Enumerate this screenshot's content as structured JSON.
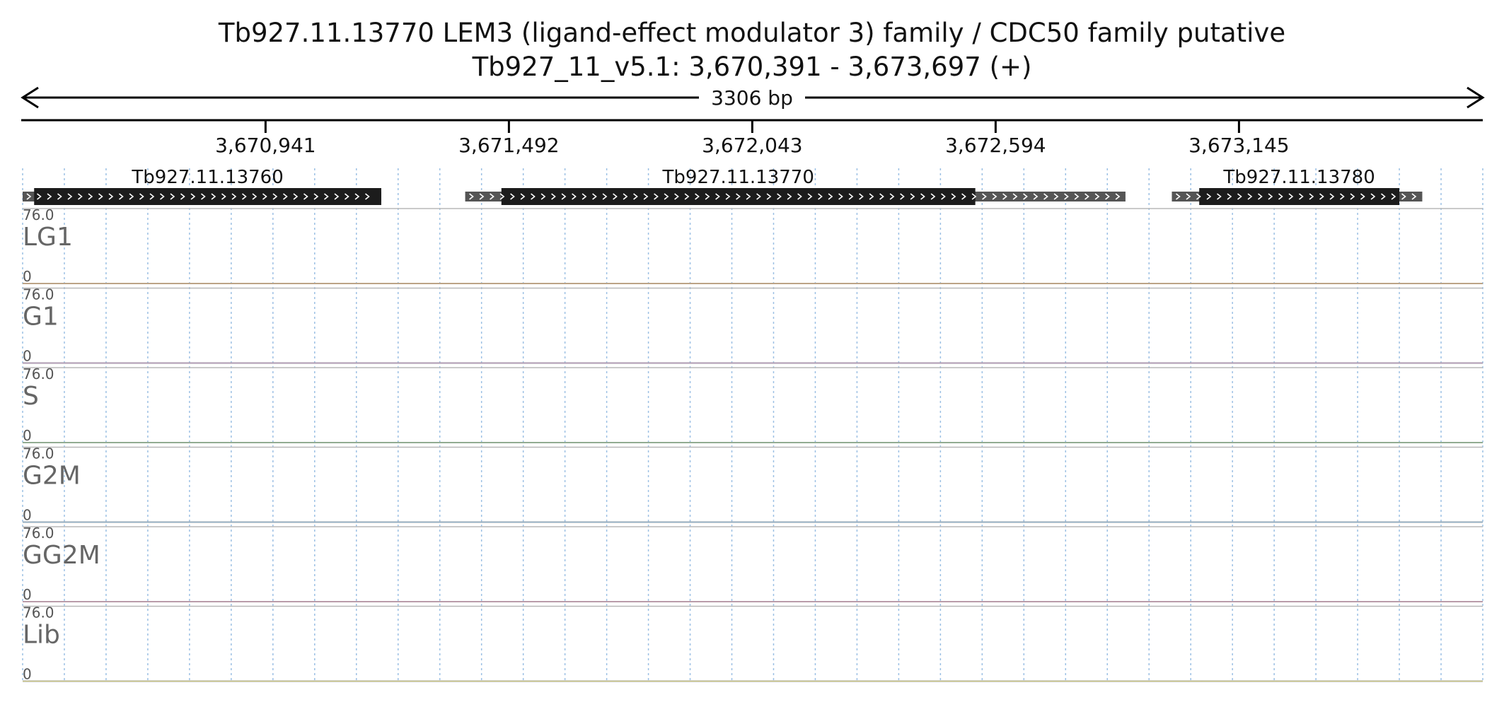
{
  "header": {
    "title_line1": "Tb927.11.13770  LEM3 (ligand-effect modulator 3) family / CDC50 family  putative",
    "title_line2": "Tb927_11_v5.1: 3,670,391 - 3,673,697 (+)",
    "span_label": "3306 bp"
  },
  "chart_data": {
    "type": "area",
    "region": {
      "chromosome": "Tb927_11_v5.1",
      "start": 3670391,
      "end": 3673697,
      "strand": "+"
    },
    "ticks": [
      {
        "pos": 3670941,
        "label": "3,670,941"
      },
      {
        "pos": 3671492,
        "label": "3,671,492"
      },
      {
        "pos": 3672043,
        "label": "3,672,043"
      },
      {
        "pos": 3672594,
        "label": "3,672,594"
      },
      {
        "pos": 3673145,
        "label": "3,673,145"
      }
    ],
    "genes": [
      {
        "id": "Tb927.11.13760",
        "utr_start": 3670391,
        "cds_start": 3670417,
        "cds_end": 3671203,
        "utr_end": 3671203
      },
      {
        "id": "Tb927.11.13770",
        "utr_start": 3671393,
        "cds_start": 3671475,
        "cds_end": 3672548,
        "utr_end": 3672888
      },
      {
        "id": "Tb927.11.13780",
        "utr_start": 3672993,
        "cds_start": 3673055,
        "cds_end": 3673508,
        "utr_end": 3673560
      }
    ],
    "ylim": [
      0,
      76.0
    ],
    "y_max_label": "76.0",
    "y_min_label": "0",
    "positions": [
      3670391,
      3670750,
      3670752,
      3670800,
      3670810,
      3670850,
      3670900,
      3670950,
      3670980,
      3671000,
      3671050,
      3671100,
      3671200,
      3671300,
      3671370,
      3671372,
      3671420,
      3671422,
      3671440,
      3671442,
      3671460,
      3671462,
      3671490,
      3671492,
      3671520,
      3671550,
      3671600,
      3671650,
      3671700,
      3671750,
      3671800,
      3671850,
      3671870,
      3671872,
      3671900,
      3671920,
      3671922,
      3671950,
      3671952,
      3671970,
      3671972,
      3672000,
      3672020,
      3672030,
      3672100,
      3672150,
      3672170,
      3672172,
      3672230,
      3672232,
      3672280,
      3672282,
      3672300,
      3672320,
      3672330,
      3672350,
      3672380,
      3672420,
      3672450,
      3672470,
      3672480,
      3672482,
      3672500,
      3672502,
      3672530,
      3672532,
      3672600,
      3672660,
      3672662,
      3672680,
      3672682,
      3672700,
      3672702,
      3672710,
      3672712,
      3672740,
      3672742,
      3672780,
      3672782,
      3672800,
      3672850,
      3672900,
      3672940,
      3672942,
      3673030,
      3673032,
      3673060,
      3673062,
      3673110,
      3673112,
      3673170,
      3673172,
      3673220,
      3673222,
      3673230,
      3673232,
      3673250,
      3673252,
      3673270,
      3673300,
      3673350,
      3673400,
      3673450,
      3673500,
      3673550,
      3673600,
      3673697
    ],
    "series": [
      {
        "name": "LG1",
        "color": "#f7b466",
        "values": [
          0,
          0,
          0,
          0,
          0,
          0,
          0,
          0,
          0,
          0,
          0,
          0,
          0,
          0,
          0,
          0,
          0,
          0,
          0,
          0,
          0,
          0,
          0,
          0,
          0,
          0,
          0,
          0,
          0,
          0,
          0,
          0,
          0,
          0,
          0,
          0,
          0,
          0,
          0,
          0,
          0,
          0,
          0,
          0,
          0,
          0,
          0,
          0,
          0,
          0,
          0,
          0,
          0,
          0,
          0,
          0,
          0,
          0,
          0,
          0,
          0,
          0,
          0,
          0,
          0,
          0,
          0,
          0,
          0,
          0,
          0,
          0,
          0,
          0,
          0,
          0,
          0,
          0,
          0,
          0,
          0,
          0,
          0,
          0,
          0,
          0,
          0,
          0,
          0,
          0,
          0,
          0,
          0,
          0,
          0,
          0,
          0,
          0,
          0,
          0,
          0,
          0,
          0,
          0,
          0,
          0,
          0
        ]
      },
      {
        "name": "G1",
        "color": "#c49bcc",
        "values": [
          0,
          0,
          0,
          0,
          0,
          0,
          0,
          0,
          0,
          0,
          0,
          0,
          0,
          0,
          0,
          0,
          0,
          0,
          0,
          0,
          0,
          0,
          0,
          0,
          0,
          0,
          0,
          0,
          0,
          0,
          0,
          0,
          0,
          0,
          0,
          0,
          0,
          0,
          0,
          0,
          0,
          0,
          0,
          0,
          0,
          0,
          0,
          0,
          0,
          0,
          0,
          0,
          0,
          0,
          0,
          0,
          0,
          0,
          0,
          0,
          0,
          0,
          0,
          0,
          0,
          0,
          0,
          0,
          0,
          0,
          0,
          0,
          0,
          0,
          0,
          0,
          0,
          0,
          0,
          0,
          0,
          0,
          0,
          0,
          0,
          0,
          0,
          0,
          0,
          0,
          0,
          0,
          0,
          0,
          0,
          0,
          0,
          0,
          0,
          0,
          0,
          0,
          0,
          0,
          0,
          0,
          0
        ]
      },
      {
        "name": "S",
        "color": "#86cc86",
        "values": [
          0,
          0,
          0,
          0,
          0,
          0,
          0,
          0,
          0,
          0,
          0,
          0,
          0,
          0,
          0,
          0,
          0,
          0,
          0,
          0,
          0,
          0,
          0,
          0,
          0,
          0,
          0,
          0,
          0,
          0,
          0,
          0,
          0,
          0,
          0,
          0,
          0,
          0,
          0,
          0,
          0,
          0,
          0,
          0,
          0,
          0,
          0,
          0,
          0,
          0,
          0,
          0,
          0,
          0,
          0,
          0,
          0,
          0,
          0,
          0,
          0,
          0,
          0,
          0,
          0,
          0,
          0,
          0,
          0,
          0,
          0,
          0,
          0,
          0,
          0,
          0,
          0,
          0,
          0,
          0,
          0,
          0,
          0,
          0,
          0,
          0,
          0,
          0,
          0,
          0,
          0,
          0,
          0,
          0,
          0,
          0,
          0,
          0,
          0,
          0,
          0,
          0,
          0,
          0,
          0,
          0,
          0
        ]
      },
      {
        "name": "G2M",
        "color": "#8cbfe6",
        "values": [
          0,
          0,
          0,
          0,
          0,
          0,
          0,
          0,
          0,
          0,
          0,
          0,
          0,
          0,
          0,
          0,
          0,
          0,
          0,
          0,
          0,
          0,
          0,
          0,
          0,
          0,
          0,
          0,
          0,
          0,
          0,
          0,
          0,
          0,
          0,
          0,
          0,
          0,
          0,
          0,
          0,
          0,
          0,
          0,
          0,
          0,
          0,
          0,
          0,
          0,
          0,
          0,
          0,
          0,
          0,
          0,
          0,
          0,
          0,
          0,
          0,
          0,
          0,
          0,
          0,
          0,
          0,
          0,
          0,
          0,
          0,
          0,
          0,
          0,
          0,
          0,
          0,
          0,
          0,
          0,
          0,
          0,
          0,
          0,
          0,
          0,
          0,
          0,
          0,
          0,
          0,
          0,
          0,
          0,
          0,
          0,
          0,
          0,
          0,
          0,
          0,
          0,
          0,
          0,
          0,
          0,
          0
        ]
      },
      {
        "name": "GG2M",
        "color": "#f2a0c4",
        "values": [
          0,
          0,
          0,
          0,
          0,
          0,
          0,
          0,
          0,
          0,
          0,
          0,
          0,
          0,
          0,
          0,
          0,
          0,
          0,
          0,
          0,
          0,
          0,
          0,
          0,
          0,
          0,
          0,
          0,
          0,
          0,
          0,
          0,
          0,
          0,
          0,
          0,
          0,
          0,
          0,
          0,
          0,
          0,
          0,
          0,
          0,
          0,
          0,
          0,
          0,
          0,
          0,
          0,
          0,
          0,
          0,
          0,
          0,
          0,
          0,
          0,
          0,
          0,
          0,
          0,
          0,
          0,
          0,
          0,
          0,
          0,
          0,
          0,
          0,
          0,
          0,
          0,
          0,
          0,
          0,
          0,
          0,
          0,
          0,
          0,
          0,
          0,
          0,
          0,
          0,
          0,
          0,
          0,
          0,
          0,
          0,
          0,
          0,
          0,
          0,
          0,
          0,
          0,
          0,
          0,
          0,
          0
        ]
      },
      {
        "name": "Lib",
        "color": "#e6dc78",
        "values": [
          0,
          0,
          0,
          0,
          0,
          0,
          0,
          0,
          0,
          0,
          0,
          0,
          0,
          0,
          0,
          0,
          0,
          0,
          0,
          0,
          0,
          0,
          0,
          0,
          0,
          0,
          0,
          0,
          0,
          0,
          0,
          0,
          0,
          0,
          0,
          0,
          0,
          0,
          0,
          0,
          0,
          0,
          0,
          0,
          0,
          0,
          0,
          0,
          0,
          0,
          0,
          0,
          0,
          0,
          0,
          0,
          0,
          0,
          0,
          0,
          0,
          0,
          0,
          0,
          0,
          0,
          0,
          0,
          0,
          0,
          0,
          0,
          0,
          0,
          0,
          0,
          0,
          0,
          0,
          0,
          0,
          0,
          0,
          0,
          0,
          0,
          0,
          0,
          0,
          0,
          0,
          0,
          0,
          0,
          0,
          0,
          0,
          0,
          0,
          0,
          0,
          0,
          0,
          0,
          0,
          0,
          0
        ]
      }
    ]
  }
}
